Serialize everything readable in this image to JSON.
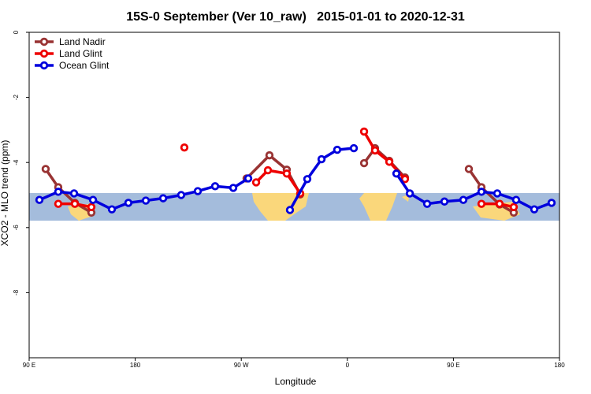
{
  "chart_data": {
    "type": "line",
    "title": "15S-0 September (Ver 10_raw)   2015-01-01 to 2020-12-31",
    "x_label": "Longitude",
    "y_label": "XCO2 - MLO trend (ppm)",
    "xlim": [
      90,
      540
    ],
    "xticks": [
      {
        "value": 90,
        "label": "90 E"
      },
      180,
      {
        "value": 270,
        "label": "90 W"
      },
      {
        "value": 360,
        "label": "0"
      },
      {
        "value": 450,
        "label": "90 E"
      },
      {
        "value": 540,
        "label": "180"
      }
    ],
    "ylim": [
      -10,
      0
    ],
    "yticks": [
      0,
      -2,
      -4,
      -6,
      -8
    ],
    "legend": "top-left",
    "series": [
      {
        "name": "Land Nadir",
        "color": "#993333",
        "x": [
          104.0,
          114.7,
          128.8,
          142.8,
          null,
          274.5,
          293.9,
          308.6,
          320.0,
          null,
          374.2,
          383.5,
          395.6,
          408.9,
          null,
          463.1,
          473.8,
          489.2,
          501.2
        ],
        "values": [
          -4.2,
          -4.76,
          -5.24,
          -5.54,
          null,
          -4.49,
          -3.78,
          -4.22,
          -4.98,
          null,
          -4.02,
          -3.56,
          -3.95,
          -4.46,
          null,
          -4.2,
          -4.76,
          -5.29,
          -5.54
        ]
      },
      {
        "name": "Land Glint",
        "color": "#ee0000",
        "x": [
          114.7,
          128.8,
          142.8,
          null,
          221.7,
          null,
          282.6,
          292.6,
          308.6,
          320.0,
          null,
          374.2,
          383.5,
          395.6,
          408.9,
          null,
          473.8,
          489.2,
          501.2
        ],
        "values": [
          -5.27,
          -5.27,
          -5.37,
          null,
          -3.54,
          null,
          -4.61,
          -4.24,
          -4.34,
          -4.95,
          null,
          -3.05,
          -3.63,
          -3.98,
          -4.51,
          null,
          -5.27,
          -5.27,
          -5.37
        ]
      },
      {
        "name": "Ocean Glint",
        "color": "#0000dd",
        "x": [
          98.7,
          114.7,
          128.1,
          144.2,
          160.2,
          174.2,
          189.0,
          203.7,
          219.0,
          233.1,
          247.8,
          263.2,
          275.9,
          null,
          311.3,
          326.0,
          338.1,
          351.4,
          365.5,
          null,
          401.6,
          413.0,
          427.7,
          442.4,
          458.4,
          473.8,
          487.2,
          503.2,
          518.6,
          533.3
        ],
        "values": [
          -5.15,
          -4.9,
          -4.95,
          -5.15,
          -5.44,
          -5.24,
          -5.17,
          -5.1,
          -5.0,
          -4.88,
          -4.73,
          -4.78,
          -4.49,
          null,
          -5.46,
          -4.51,
          -3.9,
          -3.61,
          -3.56,
          null,
          -4.34,
          -4.95,
          -5.27,
          -5.2,
          -5.15,
          -4.9,
          -4.95,
          -5.15,
          -5.44,
          -5.24
        ]
      }
    ]
  }
}
